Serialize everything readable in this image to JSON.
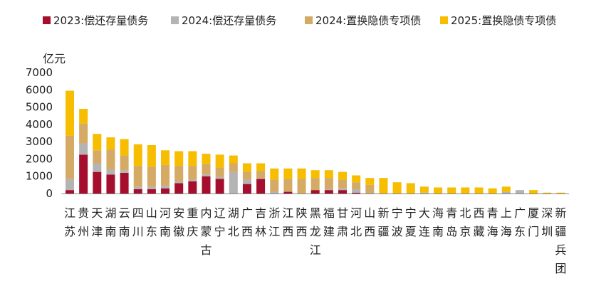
{
  "chart_data": {
    "type": "bar",
    "stacked": true,
    "unit": "亿元",
    "ylim": [
      0,
      7000
    ],
    "yticks": [
      0,
      1000,
      2000,
      3000,
      4000,
      5000,
      6000,
      7000
    ],
    "grid": false,
    "legend_position": "top",
    "categories": [
      "江苏",
      "贵州",
      "天津",
      "湖南",
      "云南",
      "四川",
      "山东",
      "河南",
      "安徽",
      "重庆",
      "内蒙古",
      "辽宁",
      "湖北",
      "广西",
      "吉林",
      "浙江",
      "江西",
      "陕西",
      "黑龙江",
      "福建",
      "甘肃",
      "河北",
      "山西",
      "新疆",
      "宁波",
      "宁夏",
      "大连",
      "海南",
      "青岛",
      "北京",
      "西藏",
      "青海",
      "上海",
      "广东",
      "厦门",
      "深圳",
      "新疆兵团"
    ],
    "series": [
      {
        "name": "2023:偿还存量债务",
        "color": "#a50f2d",
        "values": [
          200,
          2250,
          1250,
          1100,
          1200,
          250,
          250,
          300,
          600,
          700,
          1000,
          850,
          0,
          550,
          850,
          0,
          100,
          0,
          200,
          200,
          200,
          50,
          0,
          0,
          0,
          0,
          0,
          0,
          0,
          0,
          0,
          0,
          0,
          0,
          0,
          0,
          0
        ]
      },
      {
        "name": "2024:偿还存量债务",
        "color": "#b4b4b4",
        "values": [
          650,
          650,
          500,
          300,
          150,
          150,
          150,
          150,
          100,
          100,
          100,
          100,
          1250,
          250,
          50,
          100,
          0,
          0,
          0,
          50,
          100,
          200,
          0,
          0,
          0,
          0,
          50,
          0,
          0,
          0,
          0,
          0,
          100,
          200,
          0,
          0,
          0
        ]
      },
      {
        "name": "2024:置换隐债专项债",
        "color": "#d4aa64",
        "values": [
          2500,
          1150,
          750,
          1150,
          850,
          1200,
          1150,
          1200,
          900,
          800,
          600,
          550,
          500,
          450,
          400,
          700,
          750,
          850,
          700,
          650,
          500,
          400,
          500,
          0,
          0,
          0,
          0,
          0,
          0,
          0,
          0,
          0,
          0,
          0,
          0,
          0,
          0
        ]
      },
      {
        "name": "2025:置换隐债专项债",
        "color": "#f7bd00",
        "values": [
          2600,
          850,
          950,
          700,
          950,
          1250,
          1250,
          850,
          850,
          850,
          600,
          750,
          450,
          500,
          450,
          650,
          600,
          600,
          450,
          450,
          450,
          400,
          400,
          900,
          650,
          600,
          350,
          350,
          350,
          350,
          350,
          300,
          300,
          0,
          200,
          50,
          50
        ]
      }
    ]
  }
}
